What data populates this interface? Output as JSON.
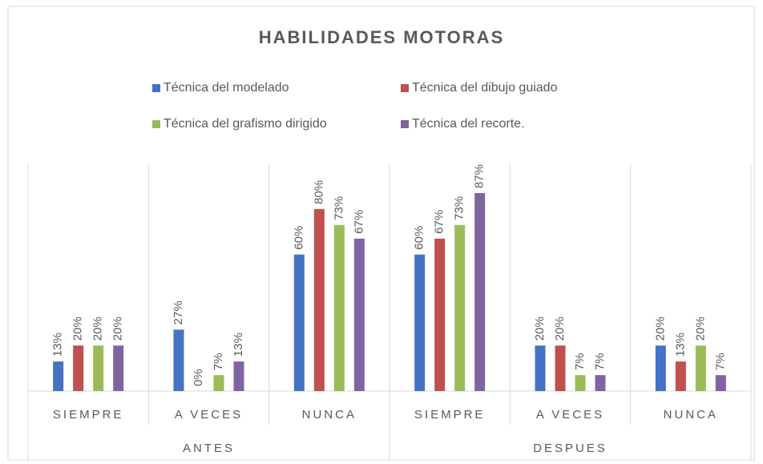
{
  "chart_data": {
    "type": "bar",
    "title": "HABILIDADES MOTORAS",
    "categories": [
      "SIEMPRE",
      "A VECES",
      "NUNCA",
      "SIEMPRE",
      "A VECES",
      "NUNCA"
    ],
    "groups": [
      "ANTES",
      "DESPUES"
    ],
    "series": [
      {
        "name": "Técnica del modelado",
        "color": "#4472c4",
        "values": [
          13,
          27,
          60,
          60,
          20,
          20
        ],
        "value_labels": [
          "13%",
          "27%",
          "60%",
          "60%",
          "20%",
          "20%"
        ]
      },
      {
        "name": "Técnica del dibujo guiado",
        "color": "#c0504d",
        "values": [
          20,
          0,
          80,
          67,
          20,
          13
        ],
        "value_labels": [
          "20%",
          "0%",
          "80%",
          "67%",
          "20%",
          "13%"
        ]
      },
      {
        "name": "Técnica del grafismo dirigido",
        "color": "#9bbb59",
        "values": [
          20,
          7,
          73,
          73,
          7,
          20
        ],
        "value_labels": [
          "20%",
          "7%",
          "73%",
          "73%",
          "7%",
          "20%"
        ]
      },
      {
        "name": "Técnica del recorte.",
        "color": "#8064a2",
        "values": [
          20,
          13,
          67,
          87,
          7,
          7
        ],
        "value_labels": [
          "20%",
          "13%",
          "67%",
          "87%",
          "7%",
          "7%"
        ]
      }
    ]
  }
}
